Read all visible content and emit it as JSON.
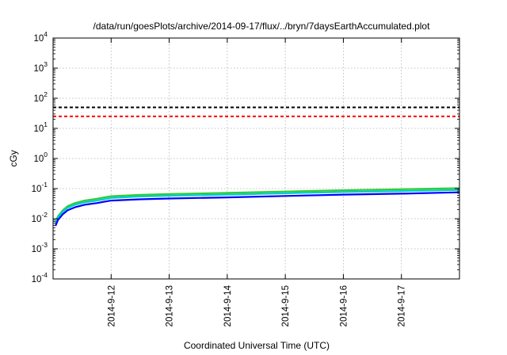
{
  "chart_data": {
    "type": "line",
    "title": "/data/run/goesPlots/archive/2014-09-17/flux/../bryn/7daysEarthAccumulated.plot",
    "xlabel": "Coordinated Universal Time (UTC)",
    "ylabel": "cGy",
    "yscale": "log",
    "ylim": [
      0.0001,
      10000
    ],
    "xlim": [
      "2014-09-11T00:00",
      "2014-09-18T00:00"
    ],
    "y_ticks": [
      {
        "value": 0.0001,
        "base": "10",
        "exp": "-4"
      },
      {
        "value": 0.001,
        "base": "10",
        "exp": "-3"
      },
      {
        "value": 0.01,
        "base": "10",
        "exp": "-2"
      },
      {
        "value": 0.1,
        "base": "10",
        "exp": "-1"
      },
      {
        "value": 1,
        "base": "10",
        "exp": "0"
      },
      {
        "value": 10,
        "base": "10",
        "exp": "1"
      },
      {
        "value": 100,
        "base": "10",
        "exp": "2"
      },
      {
        "value": 1000,
        "base": "10",
        "exp": "3"
      },
      {
        "value": 10000,
        "base": "10",
        "exp": "4"
      }
    ],
    "x_ticks": [
      {
        "value": "2014-09-12T00:00",
        "label": "2014-9-12"
      },
      {
        "value": "2014-09-13T00:00",
        "label": "2014-9-13"
      },
      {
        "value": "2014-09-14T00:00",
        "label": "2014-9-14"
      },
      {
        "value": "2014-09-15T00:00",
        "label": "2014-9-15"
      },
      {
        "value": "2014-09-16T00:00",
        "label": "2014-9-16"
      },
      {
        "value": "2014-09-17T00:00",
        "label": "2014-9-17"
      }
    ],
    "grid": true,
    "thresholds": [
      {
        "value": 50,
        "color": "#000000",
        "style": "dashed"
      },
      {
        "value": 25,
        "color": "#ff0000",
        "style": "dashed"
      }
    ],
    "series": [
      {
        "color": "#33cc33",
        "x": [
          "2014-09-11T01:00",
          "2014-09-11T02:00",
          "2014-09-11T04:00",
          "2014-09-11T06:00",
          "2014-09-11T09:00",
          "2014-09-11T13:00",
          "2014-09-11T18:00",
          "2014-09-12T00:00",
          "2014-09-12T12:00",
          "2014-09-13T00:00",
          "2014-09-14T00:00",
          "2014-09-15T00:00",
          "2014-09-16T00:00",
          "2014-09-17T00:00",
          "2014-09-18T00:00"
        ],
        "y": [
          0.0075,
          0.012,
          0.019,
          0.026,
          0.033,
          0.04,
          0.046,
          0.056,
          0.062,
          0.066,
          0.072,
          0.08,
          0.088,
          0.095,
          0.103
        ]
      },
      {
        "color": "#00cccc",
        "x": [
          "2014-09-11T01:00",
          "2014-09-11T02:00",
          "2014-09-11T04:00",
          "2014-09-11T06:00",
          "2014-09-11T09:00",
          "2014-09-11T13:00",
          "2014-09-11T18:00",
          "2014-09-12T00:00",
          "2014-09-12T12:00",
          "2014-09-13T00:00",
          "2014-09-14T00:00",
          "2014-09-15T00:00",
          "2014-09-16T00:00",
          "2014-09-17T00:00",
          "2014-09-18T00:00"
        ],
        "y": [
          0.0068,
          0.011,
          0.017,
          0.023,
          0.029,
          0.035,
          0.04,
          0.049,
          0.055,
          0.058,
          0.063,
          0.07,
          0.077,
          0.083,
          0.09
        ]
      },
      {
        "color": "#0000ff",
        "x": [
          "2014-09-11T01:00",
          "2014-09-11T02:00",
          "2014-09-11T04:00",
          "2014-09-11T06:00",
          "2014-09-11T09:00",
          "2014-09-11T13:00",
          "2014-09-11T18:00",
          "2014-09-12T00:00",
          "2014-09-12T12:00",
          "2014-09-13T00:00",
          "2014-09-14T00:00",
          "2014-09-15T00:00",
          "2014-09-16T00:00",
          "2014-09-17T00:00",
          "2014-09-18T00:00"
        ],
        "y": [
          0.0058,
          0.009,
          0.014,
          0.019,
          0.024,
          0.029,
          0.033,
          0.04,
          0.044,
          0.047,
          0.051,
          0.057,
          0.063,
          0.068,
          0.075
        ]
      }
    ]
  }
}
